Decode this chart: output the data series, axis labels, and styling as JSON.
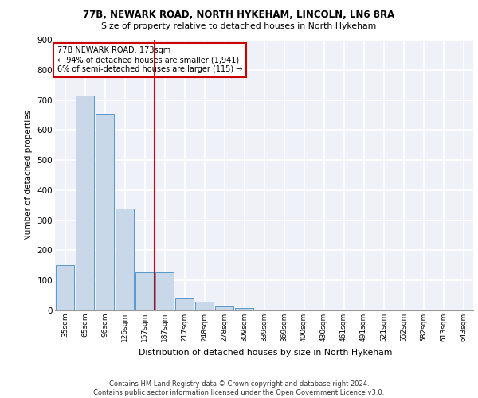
{
  "title1": "77B, NEWARK ROAD, NORTH HYKEHAM, LINCOLN, LN6 8RA",
  "title2": "Size of property relative to detached houses in North Hykeham",
  "xlabel": "Distribution of detached houses by size in North Hykeham",
  "ylabel": "Number of detached properties",
  "bar_color": "#c8d8e8",
  "bar_edge_color": "#5599cc",
  "categories": [
    "35sqm",
    "65sqm",
    "96sqm",
    "126sqm",
    "157sqm",
    "187sqm",
    "217sqm",
    "248sqm",
    "278sqm",
    "309sqm",
    "339sqm",
    "369sqm",
    "400sqm",
    "430sqm",
    "461sqm",
    "491sqm",
    "521sqm",
    "552sqm",
    "582sqm",
    "613sqm",
    "643sqm"
  ],
  "values": [
    150,
    715,
    655,
    340,
    128,
    128,
    40,
    30,
    12,
    8,
    0,
    0,
    0,
    0,
    0,
    0,
    0,
    0,
    0,
    0,
    0
  ],
  "ylim": [
    0,
    900
  ],
  "yticks": [
    0,
    100,
    200,
    300,
    400,
    500,
    600,
    700,
    800,
    900
  ],
  "vline_x": 4.5,
  "vline_color": "#cc0000",
  "annotation_text": "77B NEWARK ROAD: 173sqm\n← 94% of detached houses are smaller (1,941)\n6% of semi-detached houses are larger (115) →",
  "annotation_box_color": "#cc0000",
  "footer": "Contains HM Land Registry data © Crown copyright and database right 2024.\nContains public sector information licensed under the Open Government Licence v3.0.",
  "background_color": "#eef2f8",
  "grid_color": "#ffffff",
  "fig_bg": "#ffffff"
}
